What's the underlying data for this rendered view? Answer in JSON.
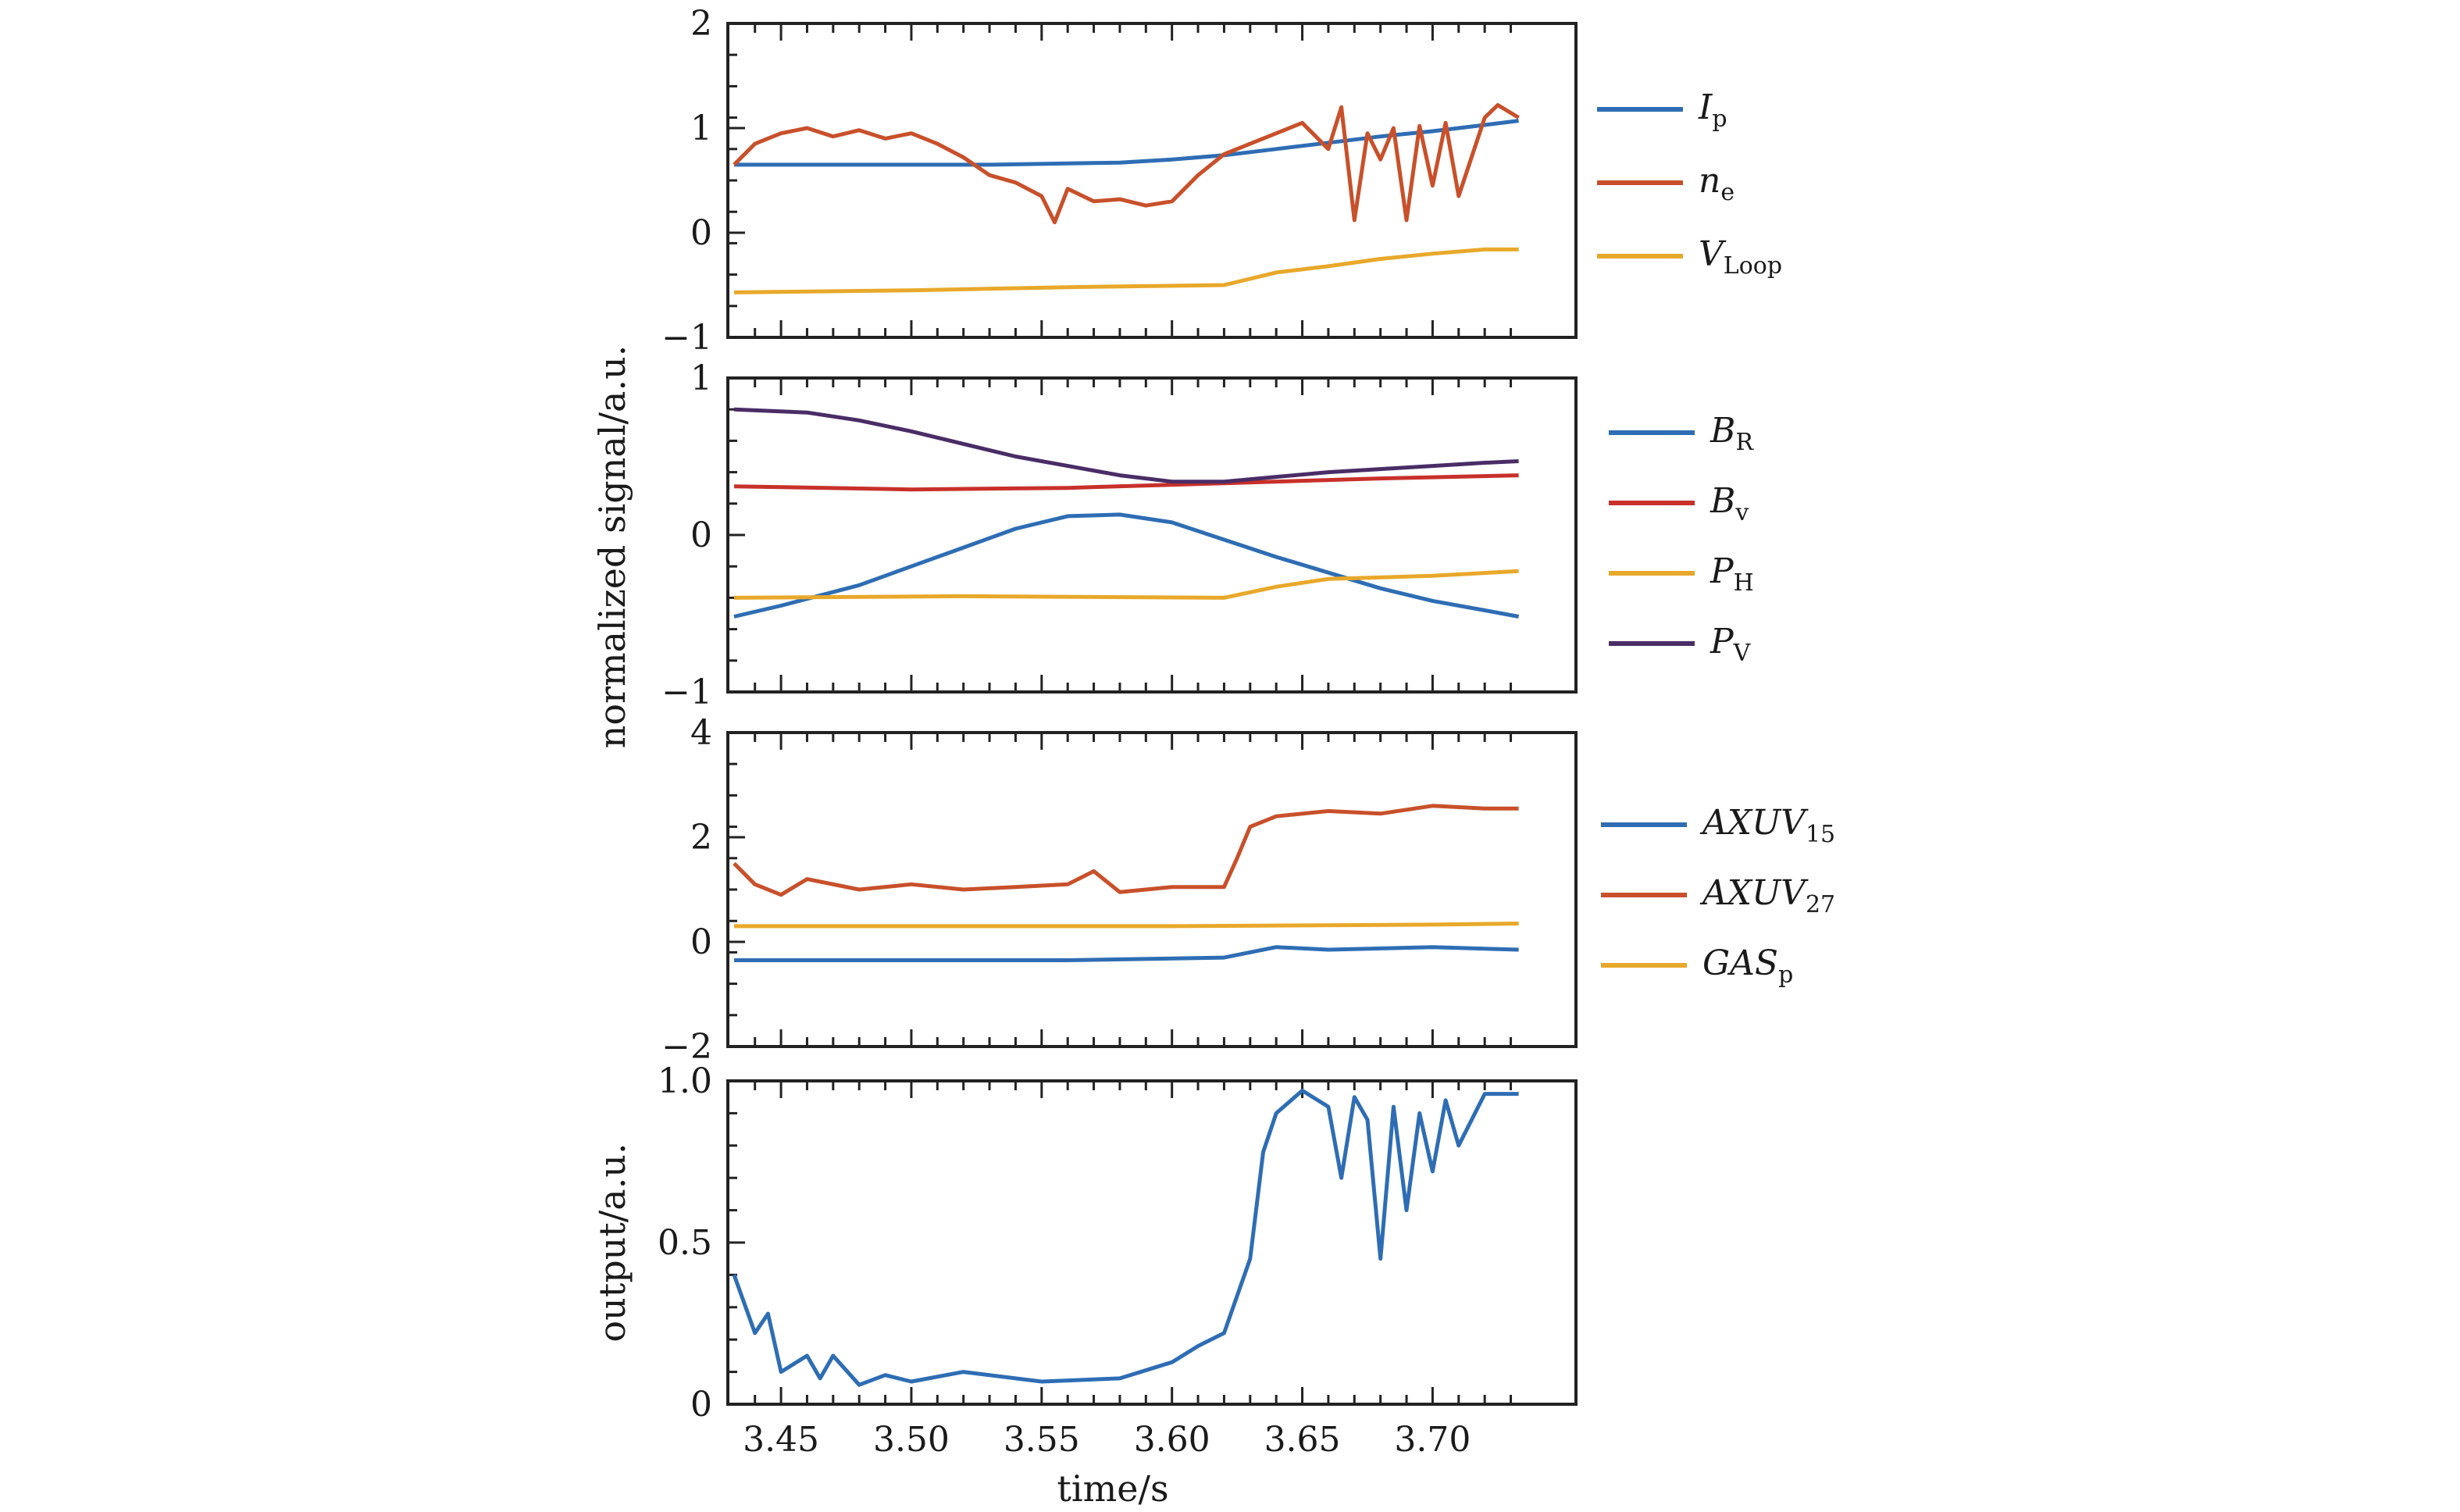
{
  "chart_data": [
    {
      "type": "line",
      "panel": "top",
      "x_range": [
        3.432,
        3.733
      ],
      "ylim": [
        -1,
        2
      ],
      "yticks": [
        "2",
        "1",
        "0",
        "−1"
      ],
      "yticks_values": [
        2,
        1,
        0,
        -1
      ],
      "legend": [
        {
          "symbol": "I",
          "sub": "p",
          "color": "#2e6db4"
        },
        {
          "symbol": "n",
          "sub": "e",
          "color": "#c8502a"
        },
        {
          "symbol": "V",
          "sub": "Loop",
          "color": "#e8a82a"
        }
      ],
      "series": [
        {
          "name_key": 0,
          "color": "#2e6db4",
          "x": [
            3.432,
            3.48,
            3.53,
            3.58,
            3.6,
            3.62,
            3.64,
            3.66,
            3.68,
            3.7,
            3.72,
            3.733
          ],
          "y": [
            0.65,
            0.65,
            0.65,
            0.67,
            0.7,
            0.74,
            0.8,
            0.86,
            0.92,
            0.97,
            1.03,
            1.07
          ]
        },
        {
          "name_key": 1,
          "color": "#c8502a",
          "x": [
            3.432,
            3.44,
            3.45,
            3.46,
            3.47,
            3.48,
            3.49,
            3.5,
            3.51,
            3.52,
            3.53,
            3.54,
            3.55,
            3.555,
            3.56,
            3.57,
            3.58,
            3.59,
            3.6,
            3.61,
            3.62,
            3.63,
            3.64,
            3.65,
            3.66,
            3.665,
            3.67,
            3.675,
            3.68,
            3.685,
            3.69,
            3.695,
            3.7,
            3.705,
            3.71,
            3.72,
            3.725,
            3.733
          ],
          "y": [
            0.65,
            0.85,
            0.95,
            1.0,
            0.92,
            0.98,
            0.9,
            0.95,
            0.85,
            0.72,
            0.55,
            0.48,
            0.35,
            0.1,
            0.42,
            0.3,
            0.32,
            0.26,
            0.3,
            0.55,
            0.75,
            0.85,
            0.95,
            1.05,
            0.8,
            1.2,
            0.12,
            0.95,
            0.7,
            1.0,
            0.12,
            1.02,
            0.45,
            1.05,
            0.35,
            1.1,
            1.22,
            1.1
          ]
        },
        {
          "name_key": 2,
          "color": "#e8a82a",
          "x": [
            3.432,
            3.5,
            3.56,
            3.62,
            3.64,
            3.66,
            3.68,
            3.7,
            3.72,
            3.733
          ],
          "y": [
            -0.57,
            -0.55,
            -0.52,
            -0.5,
            -0.38,
            -0.32,
            -0.25,
            -0.2,
            -0.16,
            -0.16
          ]
        }
      ]
    },
    {
      "type": "line",
      "panel": "second",
      "x_range": [
        3.432,
        3.733
      ],
      "ylim": [
        -1,
        1
      ],
      "yticks": [
        "1",
        "0",
        "−1"
      ],
      "yticks_values": [
        1,
        0,
        -1
      ],
      "legend": [
        {
          "symbol": "B",
          "sub": "R",
          "color": "#2e6db4"
        },
        {
          "symbol": "B",
          "sub": "v",
          "color": "#c8302a"
        },
        {
          "symbol": "P",
          "sub": "H",
          "color": "#e8a82a"
        },
        {
          "symbol": "P",
          "sub": "V",
          "color": "#4a2c66"
        }
      ],
      "series": [
        {
          "name_key": 0,
          "color": "#2e6db4",
          "x": [
            3.432,
            3.45,
            3.48,
            3.5,
            3.52,
            3.54,
            3.56,
            3.58,
            3.6,
            3.62,
            3.64,
            3.66,
            3.68,
            3.7,
            3.72,
            3.733
          ],
          "y": [
            -0.52,
            -0.45,
            -0.32,
            -0.2,
            -0.08,
            0.04,
            0.12,
            0.13,
            0.08,
            -0.03,
            -0.14,
            -0.24,
            -0.34,
            -0.42,
            -0.48,
            -0.52
          ]
        },
        {
          "name_key": 1,
          "color": "#c8302a",
          "x": [
            3.432,
            3.5,
            3.56,
            3.62,
            3.68,
            3.733
          ],
          "y": [
            0.31,
            0.29,
            0.3,
            0.33,
            0.36,
            0.38
          ]
        },
        {
          "name_key": 2,
          "color": "#e8a82a",
          "x": [
            3.432,
            3.52,
            3.62,
            3.64,
            3.66,
            3.7,
            3.733
          ],
          "y": [
            -0.4,
            -0.39,
            -0.4,
            -0.33,
            -0.28,
            -0.26,
            -0.23
          ]
        },
        {
          "name_key": 3,
          "color": "#4a2c66",
          "x": [
            3.432,
            3.46,
            3.48,
            3.5,
            3.52,
            3.54,
            3.56,
            3.58,
            3.6,
            3.62,
            3.64,
            3.66,
            3.68,
            3.7,
            3.72,
            3.733
          ],
          "y": [
            0.8,
            0.78,
            0.73,
            0.66,
            0.58,
            0.5,
            0.44,
            0.38,
            0.34,
            0.34,
            0.37,
            0.4,
            0.42,
            0.44,
            0.46,
            0.47
          ]
        }
      ]
    },
    {
      "type": "line",
      "panel": "third",
      "x_range": [
        3.432,
        3.733
      ],
      "ylim": [
        -2,
        4
      ],
      "yticks": [
        "4",
        "2",
        "0",
        "−2"
      ],
      "yticks_values": [
        4,
        2,
        0,
        -2
      ],
      "legend": [
        {
          "symbol": "AXUV",
          "sub": "15",
          "color": "#2e6db4"
        },
        {
          "symbol": "AXUV",
          "sub": "27",
          "color": "#c8502a"
        },
        {
          "symbol": "GAS",
          "sub": "p",
          "color": "#e8a82a"
        }
      ],
      "series": [
        {
          "name_key": 0,
          "color": "#2e6db4",
          "x": [
            3.432,
            3.5,
            3.56,
            3.62,
            3.64,
            3.66,
            3.7,
            3.733
          ],
          "y": [
            -0.35,
            -0.35,
            -0.35,
            -0.3,
            -0.1,
            -0.15,
            -0.1,
            -0.15
          ]
        },
        {
          "name_key": 1,
          "color": "#c8502a",
          "x": [
            3.432,
            3.44,
            3.45,
            3.46,
            3.48,
            3.5,
            3.52,
            3.54,
            3.56,
            3.57,
            3.58,
            3.6,
            3.62,
            3.625,
            3.63,
            3.64,
            3.66,
            3.68,
            3.7,
            3.72,
            3.733
          ],
          "y": [
            1.5,
            1.1,
            0.9,
            1.2,
            1.0,
            1.1,
            1.0,
            1.05,
            1.1,
            1.35,
            0.95,
            1.05,
            1.05,
            1.6,
            2.2,
            2.4,
            2.5,
            2.45,
            2.6,
            2.55,
            2.55
          ]
        },
        {
          "name_key": 2,
          "color": "#e8a82a",
          "x": [
            3.432,
            3.5,
            3.6,
            3.7,
            3.733
          ],
          "y": [
            0.3,
            0.3,
            0.3,
            0.33,
            0.35
          ]
        }
      ]
    },
    {
      "type": "line",
      "panel": "bottom",
      "x_range": [
        3.432,
        3.733
      ],
      "ylim": [
        0,
        1
      ],
      "ylabel": "output/a.u.",
      "xlabel": "time/s",
      "yticks": [
        "1.0",
        "0.5",
        "0"
      ],
      "yticks_values": [
        1.0,
        0.5,
        0
      ],
      "xticks": [
        "3.45",
        "3.50",
        "3.55",
        "3.60",
        "3.65",
        "3.70"
      ],
      "xticks_values": [
        3.45,
        3.5,
        3.55,
        3.6,
        3.65,
        3.7
      ],
      "series": [
        {
          "color": "#2e6db4",
          "x": [
            3.432,
            3.44,
            3.445,
            3.45,
            3.46,
            3.465,
            3.47,
            3.48,
            3.49,
            3.5,
            3.52,
            3.55,
            3.58,
            3.6,
            3.61,
            3.62,
            3.63,
            3.635,
            3.64,
            3.65,
            3.66,
            3.665,
            3.67,
            3.675,
            3.68,
            3.685,
            3.69,
            3.695,
            3.7,
            3.705,
            3.71,
            3.72,
            3.733
          ],
          "y": [
            0.4,
            0.22,
            0.28,
            0.1,
            0.15,
            0.08,
            0.15,
            0.06,
            0.09,
            0.07,
            0.1,
            0.07,
            0.08,
            0.13,
            0.18,
            0.22,
            0.45,
            0.78,
            0.9,
            0.97,
            0.92,
            0.7,
            0.95,
            0.88,
            0.45,
            0.92,
            0.6,
            0.9,
            0.72,
            0.94,
            0.8,
            0.96,
            0.96
          ]
        }
      ]
    }
  ],
  "shared_ylabel": "normalized signal/a.u."
}
